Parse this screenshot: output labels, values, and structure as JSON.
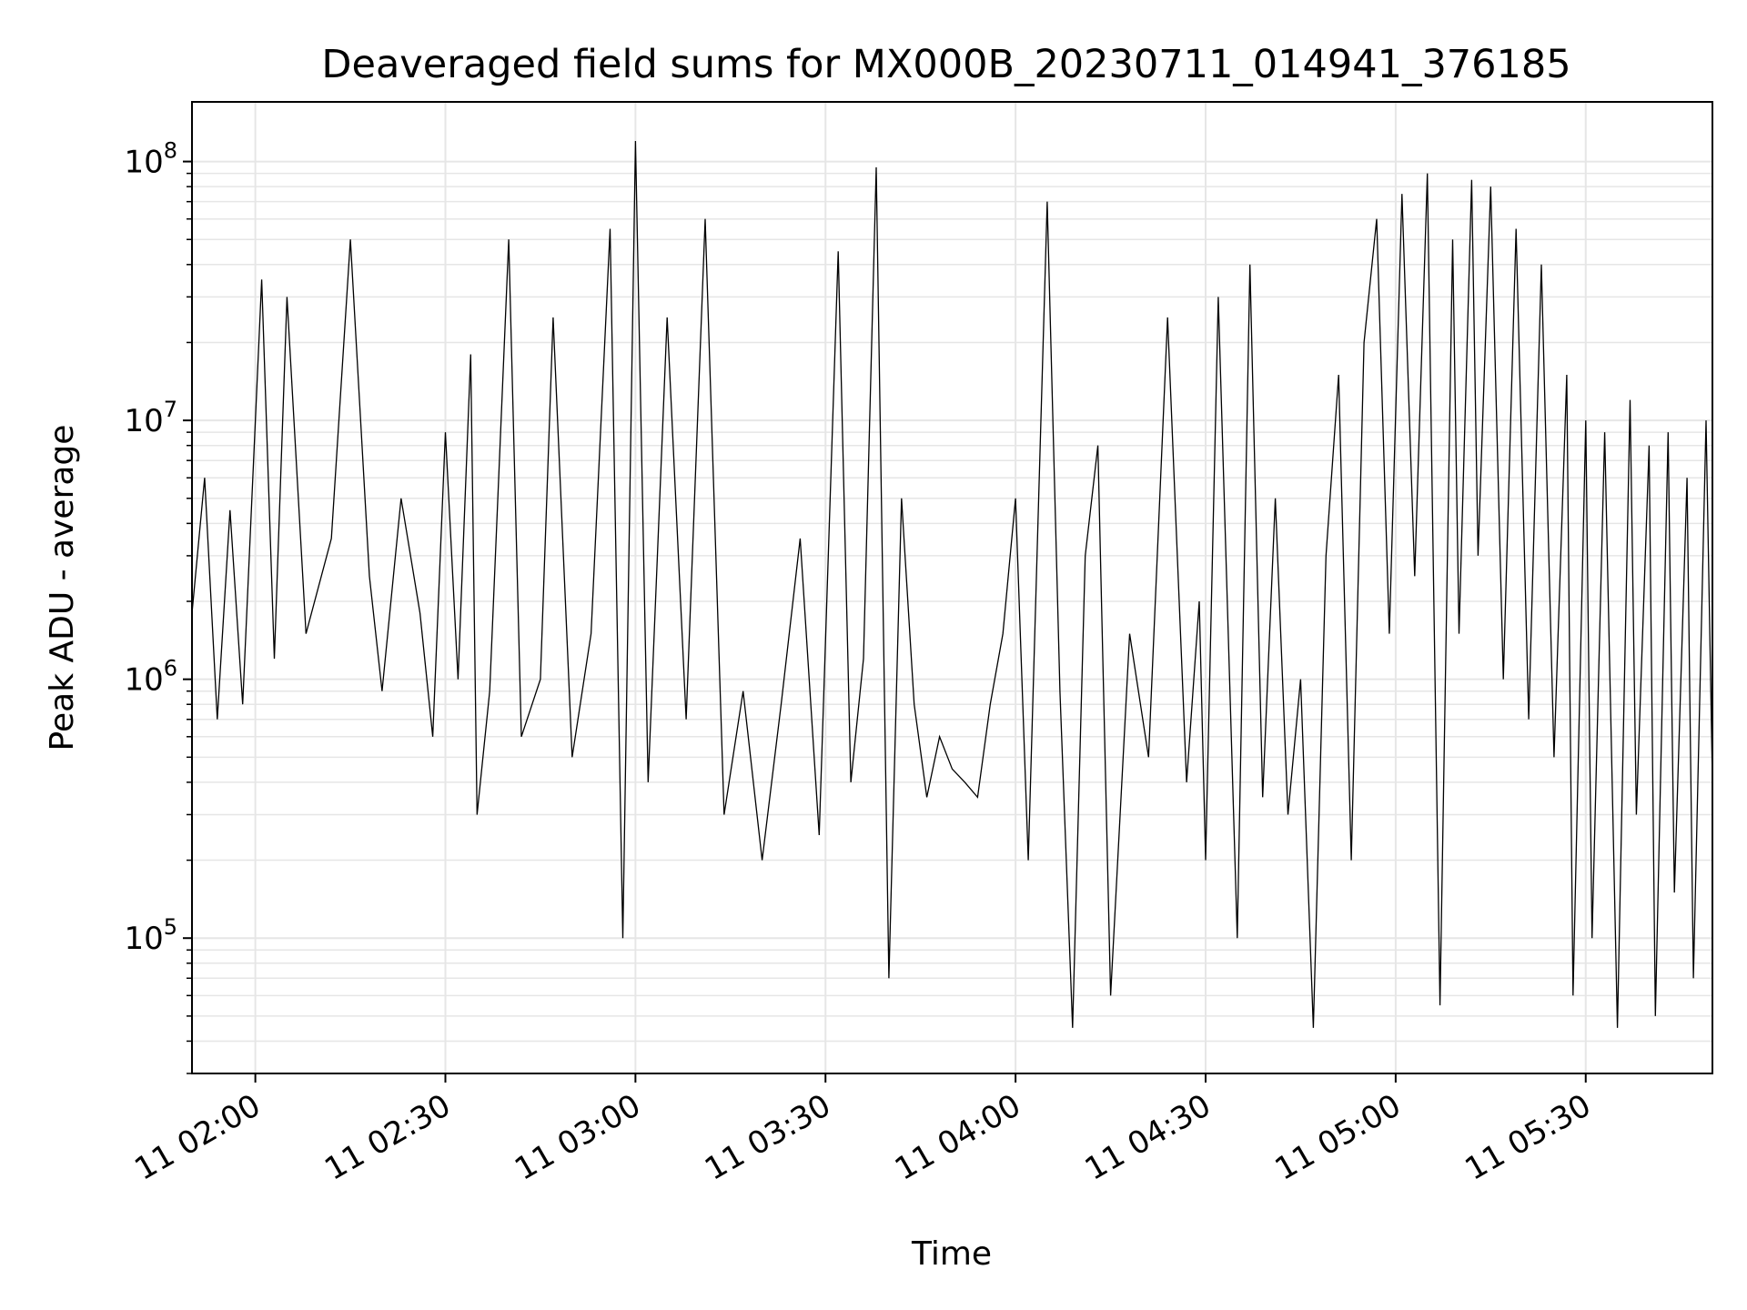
{
  "chart_data": {
    "type": "line",
    "title": "Deaveraged field sums for MX000B_20230711_014941_376185",
    "xlabel": "Time",
    "ylabel": "Peak ADU - average",
    "yscale": "log",
    "ylim": [
      30000,
      170000000
    ],
    "xlim": [
      "11 01:50",
      "11 05:50"
    ],
    "x_ticks": [
      {
        "t": "11 02:00",
        "label": "11 02:00"
      },
      {
        "t": "11 02:30",
        "label": "11 02:30"
      },
      {
        "t": "11 03:00",
        "label": "11 03:00"
      },
      {
        "t": "11 03:30",
        "label": "11 03:30"
      },
      {
        "t": "11 04:00",
        "label": "11 04:00"
      },
      {
        "t": "11 04:30",
        "label": "11 04:30"
      },
      {
        "t": "11 05:00",
        "label": "11 05:00"
      },
      {
        "t": "11 05:30",
        "label": "11 05:30"
      }
    ],
    "y_ticks": [
      {
        "value": 100000,
        "base": "10",
        "exp": "5"
      },
      {
        "value": 1000000,
        "base": "10",
        "exp": "6"
      },
      {
        "value": 10000000,
        "base": "10",
        "exp": "7"
      },
      {
        "value": 100000000,
        "base": "10",
        "exp": "8"
      }
    ],
    "grid": true,
    "line_color": "#000000",
    "grid_color": "#e6e6e6",
    "series": [
      {
        "name": "",
        "points": [
          [
            "11 01:50",
            1800000
          ],
          [
            "11 01:52",
            6000000
          ],
          [
            "11 01:54",
            700000
          ],
          [
            "11 01:56",
            4500000
          ],
          [
            "11 01:58",
            800000
          ],
          [
            "11 02:01",
            35000000
          ],
          [
            "11 02:03",
            1200000
          ],
          [
            "11 02:05",
            30000000
          ],
          [
            "11 02:08",
            1500000
          ],
          [
            "11 02:12",
            3500000
          ],
          [
            "11 02:15",
            50000000
          ],
          [
            "11 02:18",
            2500000
          ],
          [
            "11 02:20",
            900000
          ],
          [
            "11 02:23",
            5000000
          ],
          [
            "11 02:26",
            1800000
          ],
          [
            "11 02:28",
            600000
          ],
          [
            "11 02:30",
            9000000
          ],
          [
            "11 02:32",
            1000000
          ],
          [
            "11 02:34",
            18000000
          ],
          [
            "11 02:35",
            300000
          ],
          [
            "11 02:37",
            900000
          ],
          [
            "11 02:40",
            50000000
          ],
          [
            "11 02:42",
            600000
          ],
          [
            "11 02:45",
            1000000
          ],
          [
            "11 02:47",
            25000000
          ],
          [
            "11 02:50",
            500000
          ],
          [
            "11 02:53",
            1500000
          ],
          [
            "11 02:56",
            55000000
          ],
          [
            "11 02:58",
            100000
          ],
          [
            "11 03:00",
            120000000
          ],
          [
            "11 03:02",
            400000
          ],
          [
            "11 03:05",
            25000000
          ],
          [
            "11 03:08",
            700000
          ],
          [
            "11 03:11",
            60000000
          ],
          [
            "11 03:14",
            300000
          ],
          [
            "11 03:17",
            900000
          ],
          [
            "11 03:20",
            200000
          ],
          [
            "11 03:23",
            800000
          ],
          [
            "11 03:26",
            3500000
          ],
          [
            "11 03:29",
            250000
          ],
          [
            "11 03:32",
            45000000
          ],
          [
            "11 03:34",
            400000
          ],
          [
            "11 03:36",
            1200000
          ],
          [
            "11 03:38",
            95000000
          ],
          [
            "11 03:40",
            70000
          ],
          [
            "11 03:42",
            5000000
          ],
          [
            "11 03:44",
            800000
          ],
          [
            "11 03:46",
            350000
          ],
          [
            "11 03:48",
            600000
          ],
          [
            "11 03:50",
            450000
          ],
          [
            "11 03:52",
            400000
          ],
          [
            "11 03:54",
            350000
          ],
          [
            "11 03:56",
            800000
          ],
          [
            "11 03:58",
            1500000
          ],
          [
            "11 04:00",
            5000000
          ],
          [
            "11 04:02",
            200000
          ],
          [
            "11 04:05",
            70000000
          ],
          [
            "11 04:07",
            900000
          ],
          [
            "11 04:09",
            45000
          ],
          [
            "11 04:11",
            3000000
          ],
          [
            "11 04:13",
            8000000
          ],
          [
            "11 04:15",
            60000
          ],
          [
            "11 04:18",
            1500000
          ],
          [
            "11 04:21",
            500000
          ],
          [
            "11 04:24",
            25000000
          ],
          [
            "11 04:27",
            400000
          ],
          [
            "11 04:29",
            2000000
          ],
          [
            "11 04:30",
            200000
          ],
          [
            "11 04:32",
            30000000
          ],
          [
            "11 04:35",
            100000
          ],
          [
            "11 04:37",
            40000000
          ],
          [
            "11 04:39",
            350000
          ],
          [
            "11 04:41",
            5000000
          ],
          [
            "11 04:43",
            300000
          ],
          [
            "11 04:45",
            1000000
          ],
          [
            "11 04:47",
            45000
          ],
          [
            "11 04:49",
            3000000
          ],
          [
            "11 04:51",
            15000000
          ],
          [
            "11 04:53",
            200000
          ],
          [
            "11 04:55",
            20000000
          ],
          [
            "11 04:57",
            60000000
          ],
          [
            "11 04:59",
            1500000
          ],
          [
            "11 05:01",
            75000000
          ],
          [
            "11 05:03",
            2500000
          ],
          [
            "11 05:05",
            90000000
          ],
          [
            "11 05:07",
            55000
          ],
          [
            "11 05:09",
            50000000
          ],
          [
            "11 05:10",
            1500000
          ],
          [
            "11 05:12",
            85000000
          ],
          [
            "11 05:13",
            3000000
          ],
          [
            "11 05:15",
            80000000
          ],
          [
            "11 05:17",
            1000000
          ],
          [
            "11 05:19",
            55000000
          ],
          [
            "11 05:21",
            700000
          ],
          [
            "11 05:23",
            40000000
          ],
          [
            "11 05:25",
            500000
          ],
          [
            "11 05:27",
            15000000
          ],
          [
            "11 05:28",
            60000
          ],
          [
            "11 05:30",
            10000000
          ],
          [
            "11 05:31",
            100000
          ],
          [
            "11 05:33",
            9000000
          ],
          [
            "11 05:35",
            45000
          ],
          [
            "11 05:37",
            12000000
          ],
          [
            "11 05:38",
            300000
          ],
          [
            "11 05:40",
            8000000
          ],
          [
            "11 05:41",
            50000
          ],
          [
            "11 05:43",
            9000000
          ],
          [
            "11 05:44",
            150000
          ],
          [
            "11 05:46",
            6000000
          ],
          [
            "11 05:47",
            70000
          ],
          [
            "11 05:49",
            10000000
          ],
          [
            "11 05:50",
            400000
          ]
        ]
      }
    ]
  }
}
